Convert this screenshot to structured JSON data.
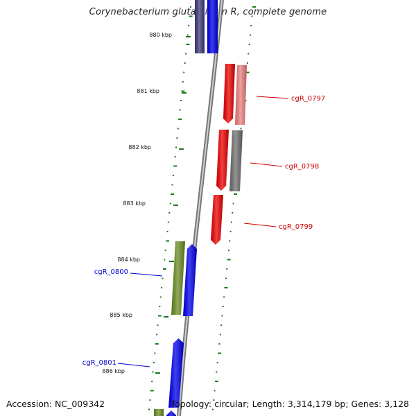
{
  "title": "Corynebacterium glutamicum R, complete genome",
  "footer": {
    "accession": "Accession: NC_009342",
    "summary": "Topology: circular; Length: 3,314,179 bp; Genes: 3,128"
  },
  "scale": {
    "ticks": [
      "880 kbp",
      "881 kbp",
      "882 kbp",
      "883 kbp",
      "884 kbp",
      "885 kbp",
      "886 kbp"
    ]
  },
  "genes": [
    {
      "id": "cgR_0796a",
      "label": "",
      "color": "#3f3a7a",
      "strand": "forward",
      "label_color": ""
    },
    {
      "id": "cgR_0796b",
      "label": "",
      "color": "#0000ee",
      "strand": "forward",
      "label_color": ""
    },
    {
      "id": "cgR_0797a",
      "label": "",
      "color": "#ee0000",
      "strand": "reverse",
      "label_color": ""
    },
    {
      "id": "cgR_0797b",
      "label": "cgR_0797",
      "color": "#ee8080",
      "strand": "reverse",
      "label_color": "#cc0000"
    },
    {
      "id": "cgR_0798a",
      "label": "",
      "color": "#ee0000",
      "strand": "reverse",
      "label_color": ""
    },
    {
      "id": "cgR_0798b",
      "label": "cgR_0798",
      "color": "#707070",
      "strand": "reverse",
      "label_color": "#cc0000"
    },
    {
      "id": "cgR_0799",
      "label": "cgR_0799",
      "color": "#ee0000",
      "strand": "reverse",
      "label_color": "#cc0000"
    },
    {
      "id": "cgR_0800a",
      "label": "cgR_0800",
      "color": "#6b8e23",
      "strand": "forward",
      "label_color": "#0000cc"
    },
    {
      "id": "cgR_0800b",
      "label": "",
      "color": "#0000ee",
      "strand": "forward",
      "label_color": ""
    },
    {
      "id": "cgR_0801",
      "label": "cgR_0801",
      "color": "#0000ee",
      "strand": "forward",
      "label_color": "#0000cc"
    },
    {
      "id": "cgR_0802a",
      "label": "",
      "color": "#6b8e23",
      "strand": "forward",
      "label_color": ""
    },
    {
      "id": "cgR_0802b",
      "label": "",
      "color": "#0000ee",
      "strand": "forward",
      "label_color": ""
    }
  ]
}
